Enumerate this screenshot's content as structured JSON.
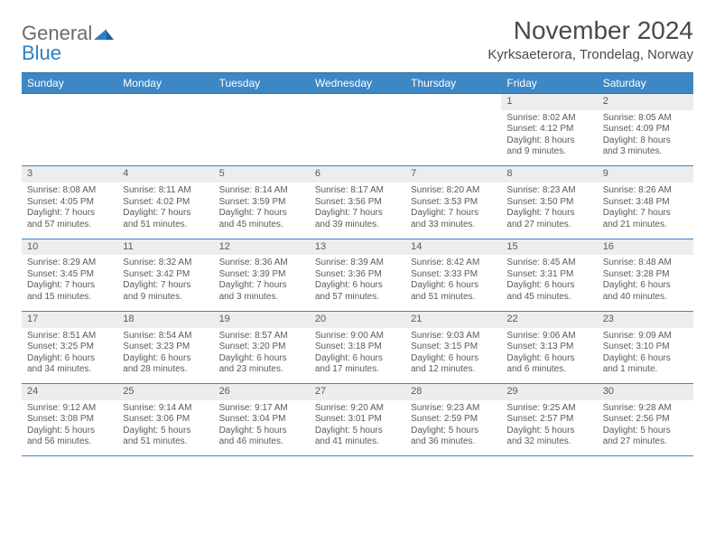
{
  "logo": {
    "general": "General",
    "blue": "Blue"
  },
  "title": "November 2024",
  "location": "Kyrksaeterora, Trondelag, Norway",
  "colors": {
    "header_bg": "#3d87c5",
    "header_text": "#ffffff",
    "daynum_bg": "#ededed",
    "border": "#3d87c5",
    "text": "#5a5a5a",
    "logo_blue": "#2f7fc0"
  },
  "weekdays": [
    "Sunday",
    "Monday",
    "Tuesday",
    "Wednesday",
    "Thursday",
    "Friday",
    "Saturday"
  ],
  "weeks": [
    [
      null,
      null,
      null,
      null,
      null,
      {
        "n": "1",
        "sr": "Sunrise: 8:02 AM",
        "ss": "Sunset: 4:12 PM",
        "d1": "Daylight: 8 hours",
        "d2": "and 9 minutes."
      },
      {
        "n": "2",
        "sr": "Sunrise: 8:05 AM",
        "ss": "Sunset: 4:09 PM",
        "d1": "Daylight: 8 hours",
        "d2": "and 3 minutes."
      }
    ],
    [
      {
        "n": "3",
        "sr": "Sunrise: 8:08 AM",
        "ss": "Sunset: 4:05 PM",
        "d1": "Daylight: 7 hours",
        "d2": "and 57 minutes."
      },
      {
        "n": "4",
        "sr": "Sunrise: 8:11 AM",
        "ss": "Sunset: 4:02 PM",
        "d1": "Daylight: 7 hours",
        "d2": "and 51 minutes."
      },
      {
        "n": "5",
        "sr": "Sunrise: 8:14 AM",
        "ss": "Sunset: 3:59 PM",
        "d1": "Daylight: 7 hours",
        "d2": "and 45 minutes."
      },
      {
        "n": "6",
        "sr": "Sunrise: 8:17 AM",
        "ss": "Sunset: 3:56 PM",
        "d1": "Daylight: 7 hours",
        "d2": "and 39 minutes."
      },
      {
        "n": "7",
        "sr": "Sunrise: 8:20 AM",
        "ss": "Sunset: 3:53 PM",
        "d1": "Daylight: 7 hours",
        "d2": "and 33 minutes."
      },
      {
        "n": "8",
        "sr": "Sunrise: 8:23 AM",
        "ss": "Sunset: 3:50 PM",
        "d1": "Daylight: 7 hours",
        "d2": "and 27 minutes."
      },
      {
        "n": "9",
        "sr": "Sunrise: 8:26 AM",
        "ss": "Sunset: 3:48 PM",
        "d1": "Daylight: 7 hours",
        "d2": "and 21 minutes."
      }
    ],
    [
      {
        "n": "10",
        "sr": "Sunrise: 8:29 AM",
        "ss": "Sunset: 3:45 PM",
        "d1": "Daylight: 7 hours",
        "d2": "and 15 minutes."
      },
      {
        "n": "11",
        "sr": "Sunrise: 8:32 AM",
        "ss": "Sunset: 3:42 PM",
        "d1": "Daylight: 7 hours",
        "d2": "and 9 minutes."
      },
      {
        "n": "12",
        "sr": "Sunrise: 8:36 AM",
        "ss": "Sunset: 3:39 PM",
        "d1": "Daylight: 7 hours",
        "d2": "and 3 minutes."
      },
      {
        "n": "13",
        "sr": "Sunrise: 8:39 AM",
        "ss": "Sunset: 3:36 PM",
        "d1": "Daylight: 6 hours",
        "d2": "and 57 minutes."
      },
      {
        "n": "14",
        "sr": "Sunrise: 8:42 AM",
        "ss": "Sunset: 3:33 PM",
        "d1": "Daylight: 6 hours",
        "d2": "and 51 minutes."
      },
      {
        "n": "15",
        "sr": "Sunrise: 8:45 AM",
        "ss": "Sunset: 3:31 PM",
        "d1": "Daylight: 6 hours",
        "d2": "and 45 minutes."
      },
      {
        "n": "16",
        "sr": "Sunrise: 8:48 AM",
        "ss": "Sunset: 3:28 PM",
        "d1": "Daylight: 6 hours",
        "d2": "and 40 minutes."
      }
    ],
    [
      {
        "n": "17",
        "sr": "Sunrise: 8:51 AM",
        "ss": "Sunset: 3:25 PM",
        "d1": "Daylight: 6 hours",
        "d2": "and 34 minutes."
      },
      {
        "n": "18",
        "sr": "Sunrise: 8:54 AM",
        "ss": "Sunset: 3:23 PM",
        "d1": "Daylight: 6 hours",
        "d2": "and 28 minutes."
      },
      {
        "n": "19",
        "sr": "Sunrise: 8:57 AM",
        "ss": "Sunset: 3:20 PM",
        "d1": "Daylight: 6 hours",
        "d2": "and 23 minutes."
      },
      {
        "n": "20",
        "sr": "Sunrise: 9:00 AM",
        "ss": "Sunset: 3:18 PM",
        "d1": "Daylight: 6 hours",
        "d2": "and 17 minutes."
      },
      {
        "n": "21",
        "sr": "Sunrise: 9:03 AM",
        "ss": "Sunset: 3:15 PM",
        "d1": "Daylight: 6 hours",
        "d2": "and 12 minutes."
      },
      {
        "n": "22",
        "sr": "Sunrise: 9:06 AM",
        "ss": "Sunset: 3:13 PM",
        "d1": "Daylight: 6 hours",
        "d2": "and 6 minutes."
      },
      {
        "n": "23",
        "sr": "Sunrise: 9:09 AM",
        "ss": "Sunset: 3:10 PM",
        "d1": "Daylight: 6 hours",
        "d2": "and 1 minute."
      }
    ],
    [
      {
        "n": "24",
        "sr": "Sunrise: 9:12 AM",
        "ss": "Sunset: 3:08 PM",
        "d1": "Daylight: 5 hours",
        "d2": "and 56 minutes."
      },
      {
        "n": "25",
        "sr": "Sunrise: 9:14 AM",
        "ss": "Sunset: 3:06 PM",
        "d1": "Daylight: 5 hours",
        "d2": "and 51 minutes."
      },
      {
        "n": "26",
        "sr": "Sunrise: 9:17 AM",
        "ss": "Sunset: 3:04 PM",
        "d1": "Daylight: 5 hours",
        "d2": "and 46 minutes."
      },
      {
        "n": "27",
        "sr": "Sunrise: 9:20 AM",
        "ss": "Sunset: 3:01 PM",
        "d1": "Daylight: 5 hours",
        "d2": "and 41 minutes."
      },
      {
        "n": "28",
        "sr": "Sunrise: 9:23 AM",
        "ss": "Sunset: 2:59 PM",
        "d1": "Daylight: 5 hours",
        "d2": "and 36 minutes."
      },
      {
        "n": "29",
        "sr": "Sunrise: 9:25 AM",
        "ss": "Sunset: 2:57 PM",
        "d1": "Daylight: 5 hours",
        "d2": "and 32 minutes."
      },
      {
        "n": "30",
        "sr": "Sunrise: 9:28 AM",
        "ss": "Sunset: 2:56 PM",
        "d1": "Daylight: 5 hours",
        "d2": "and 27 minutes."
      }
    ]
  ]
}
